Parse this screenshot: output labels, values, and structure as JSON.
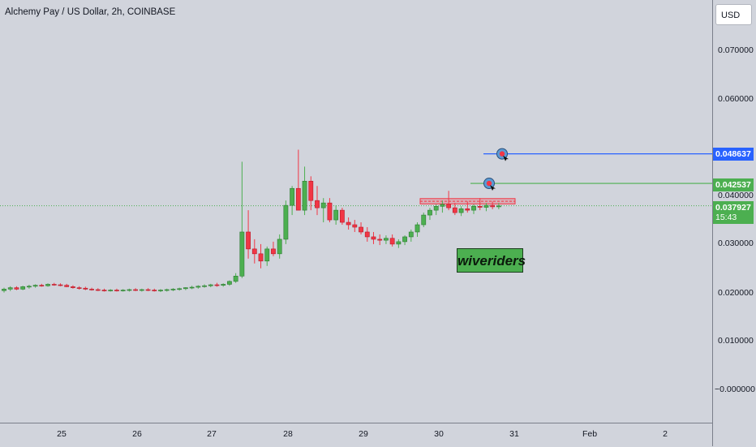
{
  "header": {
    "title": "Alchemy Pay / US Dollar, 2h, COINBASE",
    "currency_button": "USD"
  },
  "price_axis": {
    "ticks": [
      "0.070000",
      "0.060000",
      "0.040000",
      "0.030000",
      "0.020000",
      "0.010000",
      "−0.000000"
    ],
    "blue_level_label": "0.048637",
    "green_level_label": "0.042537",
    "current_price_label": "0.037927",
    "countdown_label": "15:43"
  },
  "time_axis": {
    "labels": [
      "25",
      "26",
      "27",
      "28",
      "29",
      "30",
      "31",
      "Feb",
      "2"
    ]
  },
  "watermark": {
    "text": "wiveriders"
  },
  "colors": {
    "background": "#d1d4dc",
    "up_candle": "#4caf50",
    "down_candle": "#f23645",
    "blue_level": "#2962ff",
    "green_level": "#4caf50"
  },
  "chart_data": {
    "type": "candlestick",
    "symbol": "Alchemy Pay / US Dollar",
    "interval": "2h",
    "exchange": "COINBASE",
    "ylim": [
      -0.003,
      0.075
    ],
    "horizontal_levels": [
      {
        "value": 0.048637,
        "color": "#2962ff"
      },
      {
        "value": 0.042537,
        "color": "#4caf50"
      }
    ],
    "resistance_zone": [
      0.0383,
      0.0394
    ],
    "current_price": 0.037927,
    "candles_ohlc": [
      [
        0.0204,
        0.021,
        0.02,
        0.0207
      ],
      [
        0.0207,
        0.0213,
        0.0203,
        0.021
      ],
      [
        0.021,
        0.0213,
        0.0205,
        0.0207
      ],
      [
        0.0207,
        0.0214,
        0.0205,
        0.0212
      ],
      [
        0.0212,
        0.0216,
        0.0208,
        0.0213
      ],
      [
        0.0213,
        0.0217,
        0.021,
        0.0215
      ],
      [
        0.0215,
        0.0218,
        0.0212,
        0.0214
      ],
      [
        0.0214,
        0.0219,
        0.0212,
        0.0217
      ],
      [
        0.0217,
        0.022,
        0.0214,
        0.0216
      ],
      [
        0.0216,
        0.0219,
        0.0213,
        0.0215
      ],
      [
        0.0215,
        0.0218,
        0.0211,
        0.0212
      ],
      [
        0.0212,
        0.0215,
        0.0208,
        0.021
      ],
      [
        0.021,
        0.0213,
        0.0206,
        0.0209
      ],
      [
        0.0209,
        0.0212,
        0.0205,
        0.0207
      ],
      [
        0.0207,
        0.021,
        0.0204,
        0.0206
      ],
      [
        0.0206,
        0.0209,
        0.0203,
        0.0205
      ],
      [
        0.0205,
        0.0208,
        0.0202,
        0.0204
      ],
      [
        0.0204,
        0.0207,
        0.0202,
        0.0205
      ],
      [
        0.0205,
        0.0208,
        0.0202,
        0.0204
      ],
      [
        0.0204,
        0.0207,
        0.0202,
        0.0205
      ],
      [
        0.0205,
        0.0208,
        0.0202,
        0.0206
      ],
      [
        0.0206,
        0.0209,
        0.0203,
        0.0205
      ],
      [
        0.0205,
        0.0208,
        0.0202,
        0.0206
      ],
      [
        0.0206,
        0.0209,
        0.0203,
        0.0205
      ],
      [
        0.0205,
        0.0208,
        0.0202,
        0.0204
      ],
      [
        0.0204,
        0.0207,
        0.0201,
        0.0205
      ],
      [
        0.0205,
        0.0208,
        0.0202,
        0.0206
      ],
      [
        0.0206,
        0.0209,
        0.0203,
        0.0207
      ],
      [
        0.0207,
        0.021,
        0.0204,
        0.0208
      ],
      [
        0.0208,
        0.0211,
        0.0205,
        0.021
      ],
      [
        0.021,
        0.0214,
        0.0207,
        0.0211
      ],
      [
        0.0211,
        0.0215,
        0.0208,
        0.0213
      ],
      [
        0.0213,
        0.0217,
        0.021,
        0.0214
      ],
      [
        0.0214,
        0.0218,
        0.0211,
        0.0216
      ],
      [
        0.0216,
        0.022,
        0.0212,
        0.0215
      ],
      [
        0.0215,
        0.0219,
        0.0212,
        0.0217
      ],
      [
        0.0217,
        0.0225,
        0.0214,
        0.0223
      ],
      [
        0.0223,
        0.024,
        0.022,
        0.0234
      ],
      [
        0.0234,
        0.047,
        0.023,
        0.0325
      ],
      [
        0.0325,
        0.037,
        0.027,
        0.029
      ],
      [
        0.029,
        0.031,
        0.026,
        0.028
      ],
      [
        0.028,
        0.03,
        0.025,
        0.0265
      ],
      [
        0.0265,
        0.0295,
        0.0255,
        0.029
      ],
      [
        0.029,
        0.0305,
        0.0275,
        0.028
      ],
      [
        0.028,
        0.032,
        0.027,
        0.031
      ],
      [
        0.031,
        0.039,
        0.03,
        0.038
      ],
      [
        0.038,
        0.042,
        0.036,
        0.0415
      ],
      [
        0.0415,
        0.0495,
        0.037,
        0.037
      ],
      [
        0.037,
        0.046,
        0.036,
        0.043
      ],
      [
        0.043,
        0.044,
        0.037,
        0.039
      ],
      [
        0.039,
        0.042,
        0.036,
        0.0375
      ],
      [
        0.0375,
        0.0395,
        0.0345,
        0.0385
      ],
      [
        0.0385,
        0.0395,
        0.0345,
        0.035
      ],
      [
        0.035,
        0.038,
        0.034,
        0.037
      ],
      [
        0.037,
        0.0375,
        0.034,
        0.0345
      ],
      [
        0.0345,
        0.0355,
        0.033,
        0.034
      ],
      [
        0.034,
        0.035,
        0.0325,
        0.0335
      ],
      [
        0.0335,
        0.0345,
        0.032,
        0.0325
      ],
      [
        0.0325,
        0.0335,
        0.0305,
        0.0315
      ],
      [
        0.0315,
        0.0325,
        0.03,
        0.031
      ],
      [
        0.031,
        0.032,
        0.0298,
        0.0308
      ],
      [
        0.0308,
        0.0318,
        0.03,
        0.0312
      ],
      [
        0.0312,
        0.032,
        0.0295,
        0.03
      ],
      [
        0.03,
        0.031,
        0.0292,
        0.0305
      ],
      [
        0.0305,
        0.0318,
        0.0298,
        0.0315
      ],
      [
        0.0315,
        0.033,
        0.0305,
        0.0325
      ],
      [
        0.0325,
        0.0345,
        0.0315,
        0.034
      ],
      [
        0.034,
        0.0365,
        0.0335,
        0.036
      ],
      [
        0.036,
        0.0375,
        0.035,
        0.037
      ],
      [
        0.037,
        0.0382,
        0.036,
        0.0378
      ],
      [
        0.0378,
        0.039,
        0.0365,
        0.0382
      ],
      [
        0.0382,
        0.041,
        0.037,
        0.0375
      ],
      [
        0.0375,
        0.0385,
        0.036,
        0.0365
      ],
      [
        0.0365,
        0.0378,
        0.0358,
        0.0373
      ],
      [
        0.0373,
        0.0388,
        0.0365,
        0.037
      ],
      [
        0.037,
        0.0382,
        0.0362,
        0.0378
      ],
      [
        0.0378,
        0.0395,
        0.037,
        0.0376
      ],
      [
        0.0376,
        0.0385,
        0.0368,
        0.038
      ],
      [
        0.038,
        0.0388,
        0.0372,
        0.0377
      ],
      [
        0.0377,
        0.0385,
        0.0372,
        0.0379
      ]
    ]
  }
}
